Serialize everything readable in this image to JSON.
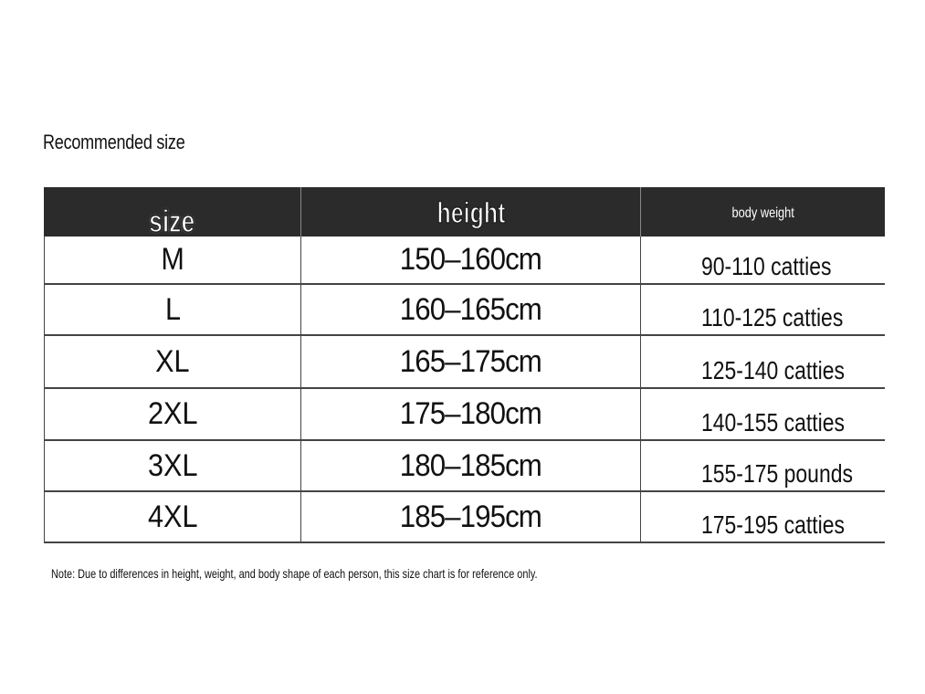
{
  "title": "Recommended size",
  "table": {
    "headers": [
      "size",
      "height",
      "body weight"
    ],
    "rows": [
      [
        "M",
        "150–160cm",
        "90-110 catties"
      ],
      [
        "L",
        "160–165cm",
        "110-125 catties"
      ],
      [
        "XL",
        "165–175cm",
        "125-140 catties"
      ],
      [
        "2XL",
        "175–180cm",
        "140-155 catties"
      ],
      [
        "3XL",
        "180–185cm",
        "155-175 pounds"
      ],
      [
        "4XL",
        "185–195cm",
        "175-195 catties"
      ]
    ]
  },
  "note": "Note: Due to differences in height, weight, and body shape of each person, this size chart is for reference only.",
  "colors": {
    "header_bg": "#2b2b2b",
    "border": "#444444"
  }
}
